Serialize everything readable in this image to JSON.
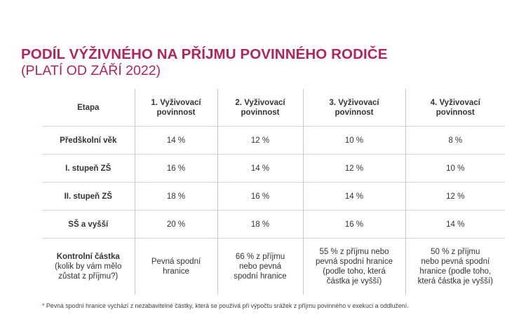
{
  "title": "PODÍL VÝŽIVNÉHO NA PŘÍJMU POVINNÉHO RODIČE",
  "subtitle": "(PLATÍ OD ZÁŘÍ 2022)",
  "table": {
    "headers": [
      [
        "Etapa",
        ""
      ],
      [
        "1. Vyživovací",
        "povinnost"
      ],
      [
        "2. Vyživovací",
        "povinnost"
      ],
      [
        "3. Vyživovací",
        "povinnost"
      ],
      [
        "4. Vyživovací",
        "povinnost"
      ]
    ],
    "rows": [
      [
        "Předškolní věk",
        "14 %",
        "12 %",
        "10 %",
        "8 %"
      ],
      [
        "I. stupeň ZŠ",
        "16 %",
        "14 %",
        "12 %",
        "10 %"
      ],
      [
        "II. stupeň ZŠ",
        "18 %",
        "16 %",
        "14 %",
        "12 %"
      ],
      [
        "SŠ a vyšší",
        "20 %",
        "18 %",
        "16 %",
        "14 %"
      ]
    ],
    "control": {
      "label": "Kontrolní částka",
      "label_note": [
        "(kolik by vám mělo",
        "zůstat z příjmu?)"
      ],
      "cells": [
        [
          "Pevná spodní",
          "hranice"
        ],
        [
          "66 % z příjmu",
          "nebo pevná",
          "spodní hranice"
        ],
        [
          "55 % z příjmu nebo",
          "pevná spodní hranice",
          "(podle toho, která",
          "částka je vyšší)"
        ],
        [
          "50 % z příjmu",
          "nebo pevná spodní",
          "hranice (podle toho,",
          "která částka je vyšší)"
        ]
      ]
    }
  },
  "footnote": {
    "mark": "*",
    "text": " Pevná spodní hranice vychází z nezabavitelné částky, která se používá při výpočtu srážek z příjmu povinného v exekuci a oddlužení."
  },
  "colors": {
    "accent": "#b3245f",
    "grid": "#e8cfd9"
  }
}
